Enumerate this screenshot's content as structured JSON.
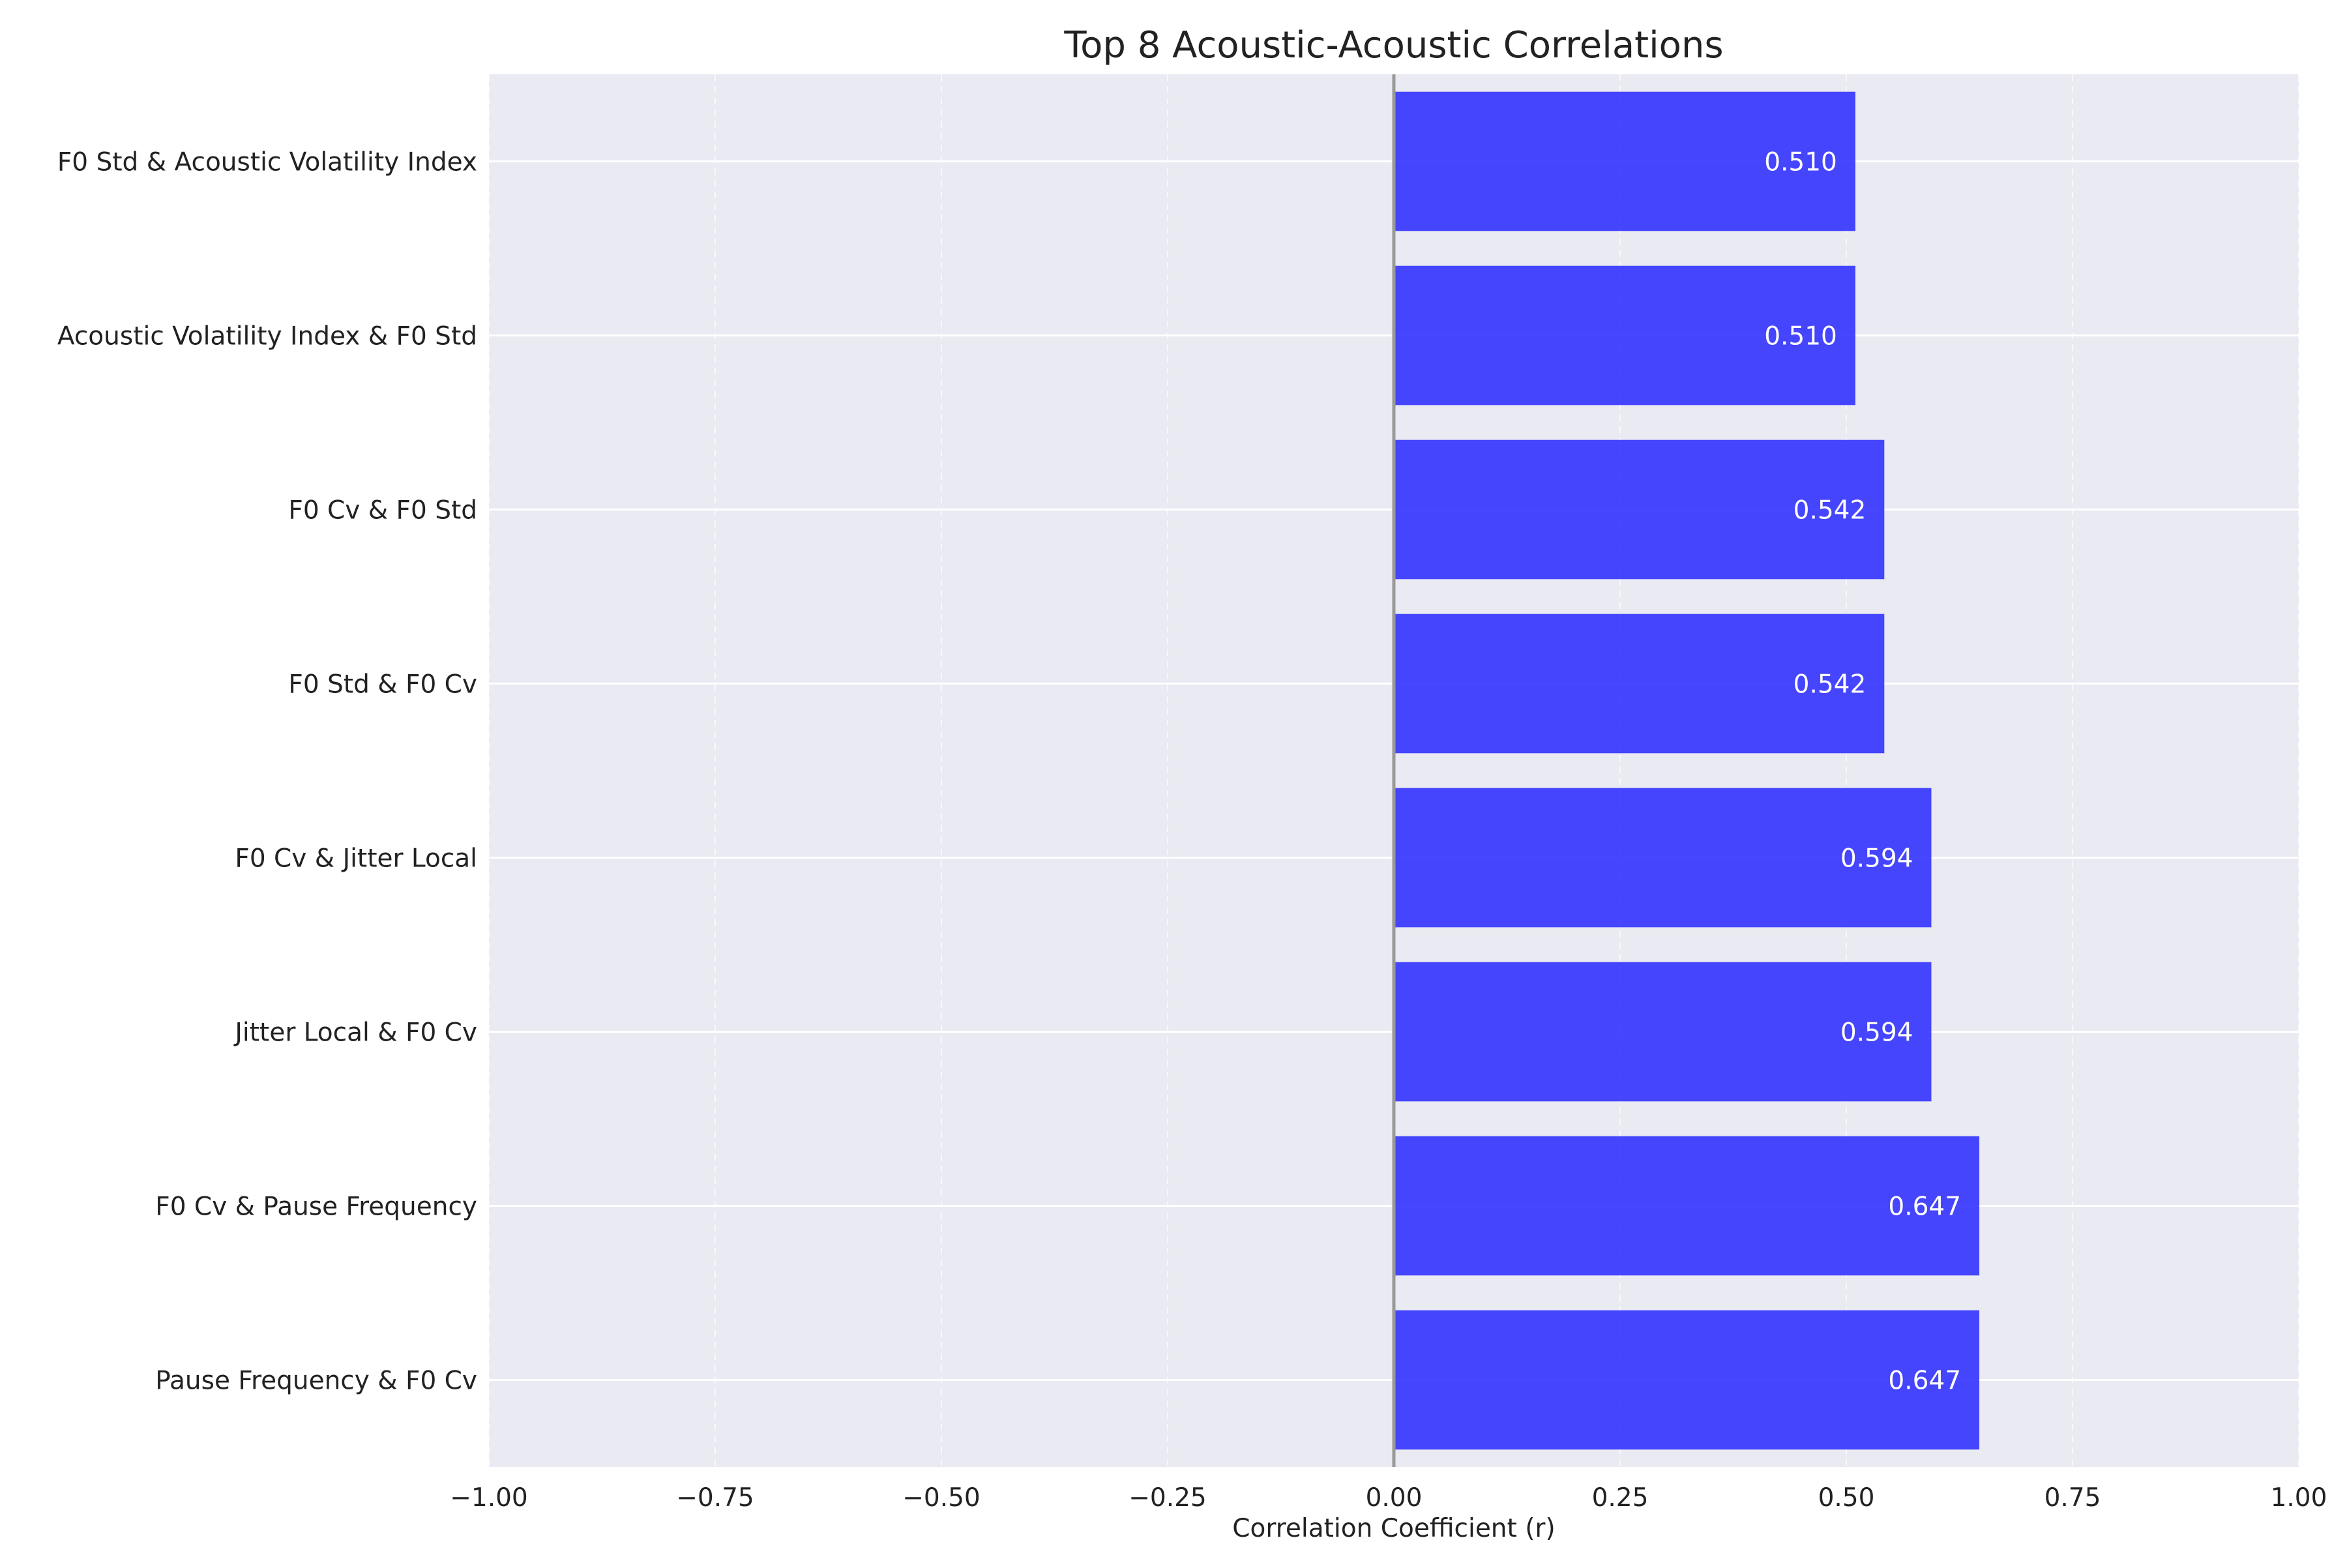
{
  "chart_data": {
    "type": "bar",
    "orientation": "horizontal",
    "title": "Top 8 Acoustic-Acoustic Correlations",
    "xlabel": "Correlation Coefficient (r)",
    "ylabel": "",
    "xlim": [
      -1.0,
      1.0
    ],
    "xticks": [
      -1.0,
      -0.75,
      -0.5,
      -0.25,
      0.0,
      0.25,
      0.5,
      0.75,
      1.0
    ],
    "xtick_labels": [
      "−1.00",
      "−0.75",
      "−0.50",
      "−0.25",
      "0.00",
      "0.25",
      "0.50",
      "0.75",
      "1.00"
    ],
    "categories": [
      "F0 Std & Acoustic Volatility Index",
      "Acoustic Volatility Index & F0 Std",
      "F0 Cv & F0 Std",
      "F0 Std & F0 Cv",
      "F0 Cv & Jitter Local",
      "Jitter Local & F0 Cv",
      "F0 Cv & Pause Frequency",
      "Pause Frequency & F0 Cv"
    ],
    "values": [
      0.51,
      0.51,
      0.542,
      0.542,
      0.594,
      0.594,
      0.647,
      0.647
    ],
    "value_labels": [
      "0.510",
      "0.510",
      "0.542",
      "0.542",
      "0.594",
      "0.594",
      "0.647",
      "0.647"
    ],
    "grid": true,
    "zero_line": true,
    "colors": {
      "bar": "#3333ff",
      "background": "#eaeaf2",
      "grid": "#ffffff",
      "zero_line": "#999999",
      "value_label": "#ffffff"
    }
  }
}
